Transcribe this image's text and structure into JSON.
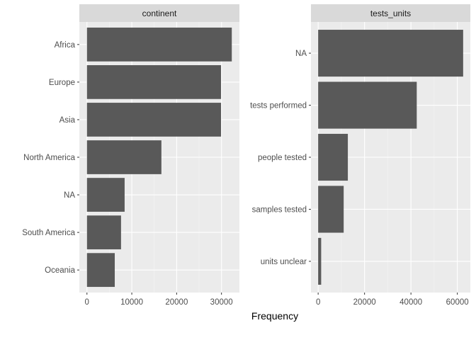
{
  "chart_data": [
    {
      "type": "bar",
      "orientation": "horizontal",
      "facet": "continent",
      "categories": [
        "Africa",
        "Europe",
        "Asia",
        "North America",
        "NA",
        "South America",
        "Oceania"
      ],
      "values": [
        32300,
        29900,
        29900,
        16600,
        8400,
        7600,
        6200
      ],
      "xlim": [
        -1700,
        34000
      ],
      "xticks": [
        0,
        10000,
        20000,
        30000
      ],
      "xtick_labels": [
        "0",
        "10000",
        "20000",
        "30000"
      ]
    },
    {
      "type": "bar",
      "orientation": "horizontal",
      "facet": "tests_units",
      "categories": [
        "NA",
        "tests performed",
        "people tested",
        "samples tested",
        "units unclear"
      ],
      "values": [
        62500,
        42500,
        12800,
        11000,
        1300
      ],
      "xlim": [
        -3100,
        65600
      ],
      "xticks": [
        0,
        20000,
        40000,
        60000
      ],
      "xtick_labels": [
        "0",
        "20000",
        "40000",
        "60000"
      ]
    }
  ],
  "xlabel": "Frequency",
  "colors": {
    "bar": "#595959",
    "panel_bg": "#ebebeb",
    "strip_bg": "#d9d9d9",
    "grid_major": "#ffffff",
    "tick_text": "#4d4d4d"
  }
}
